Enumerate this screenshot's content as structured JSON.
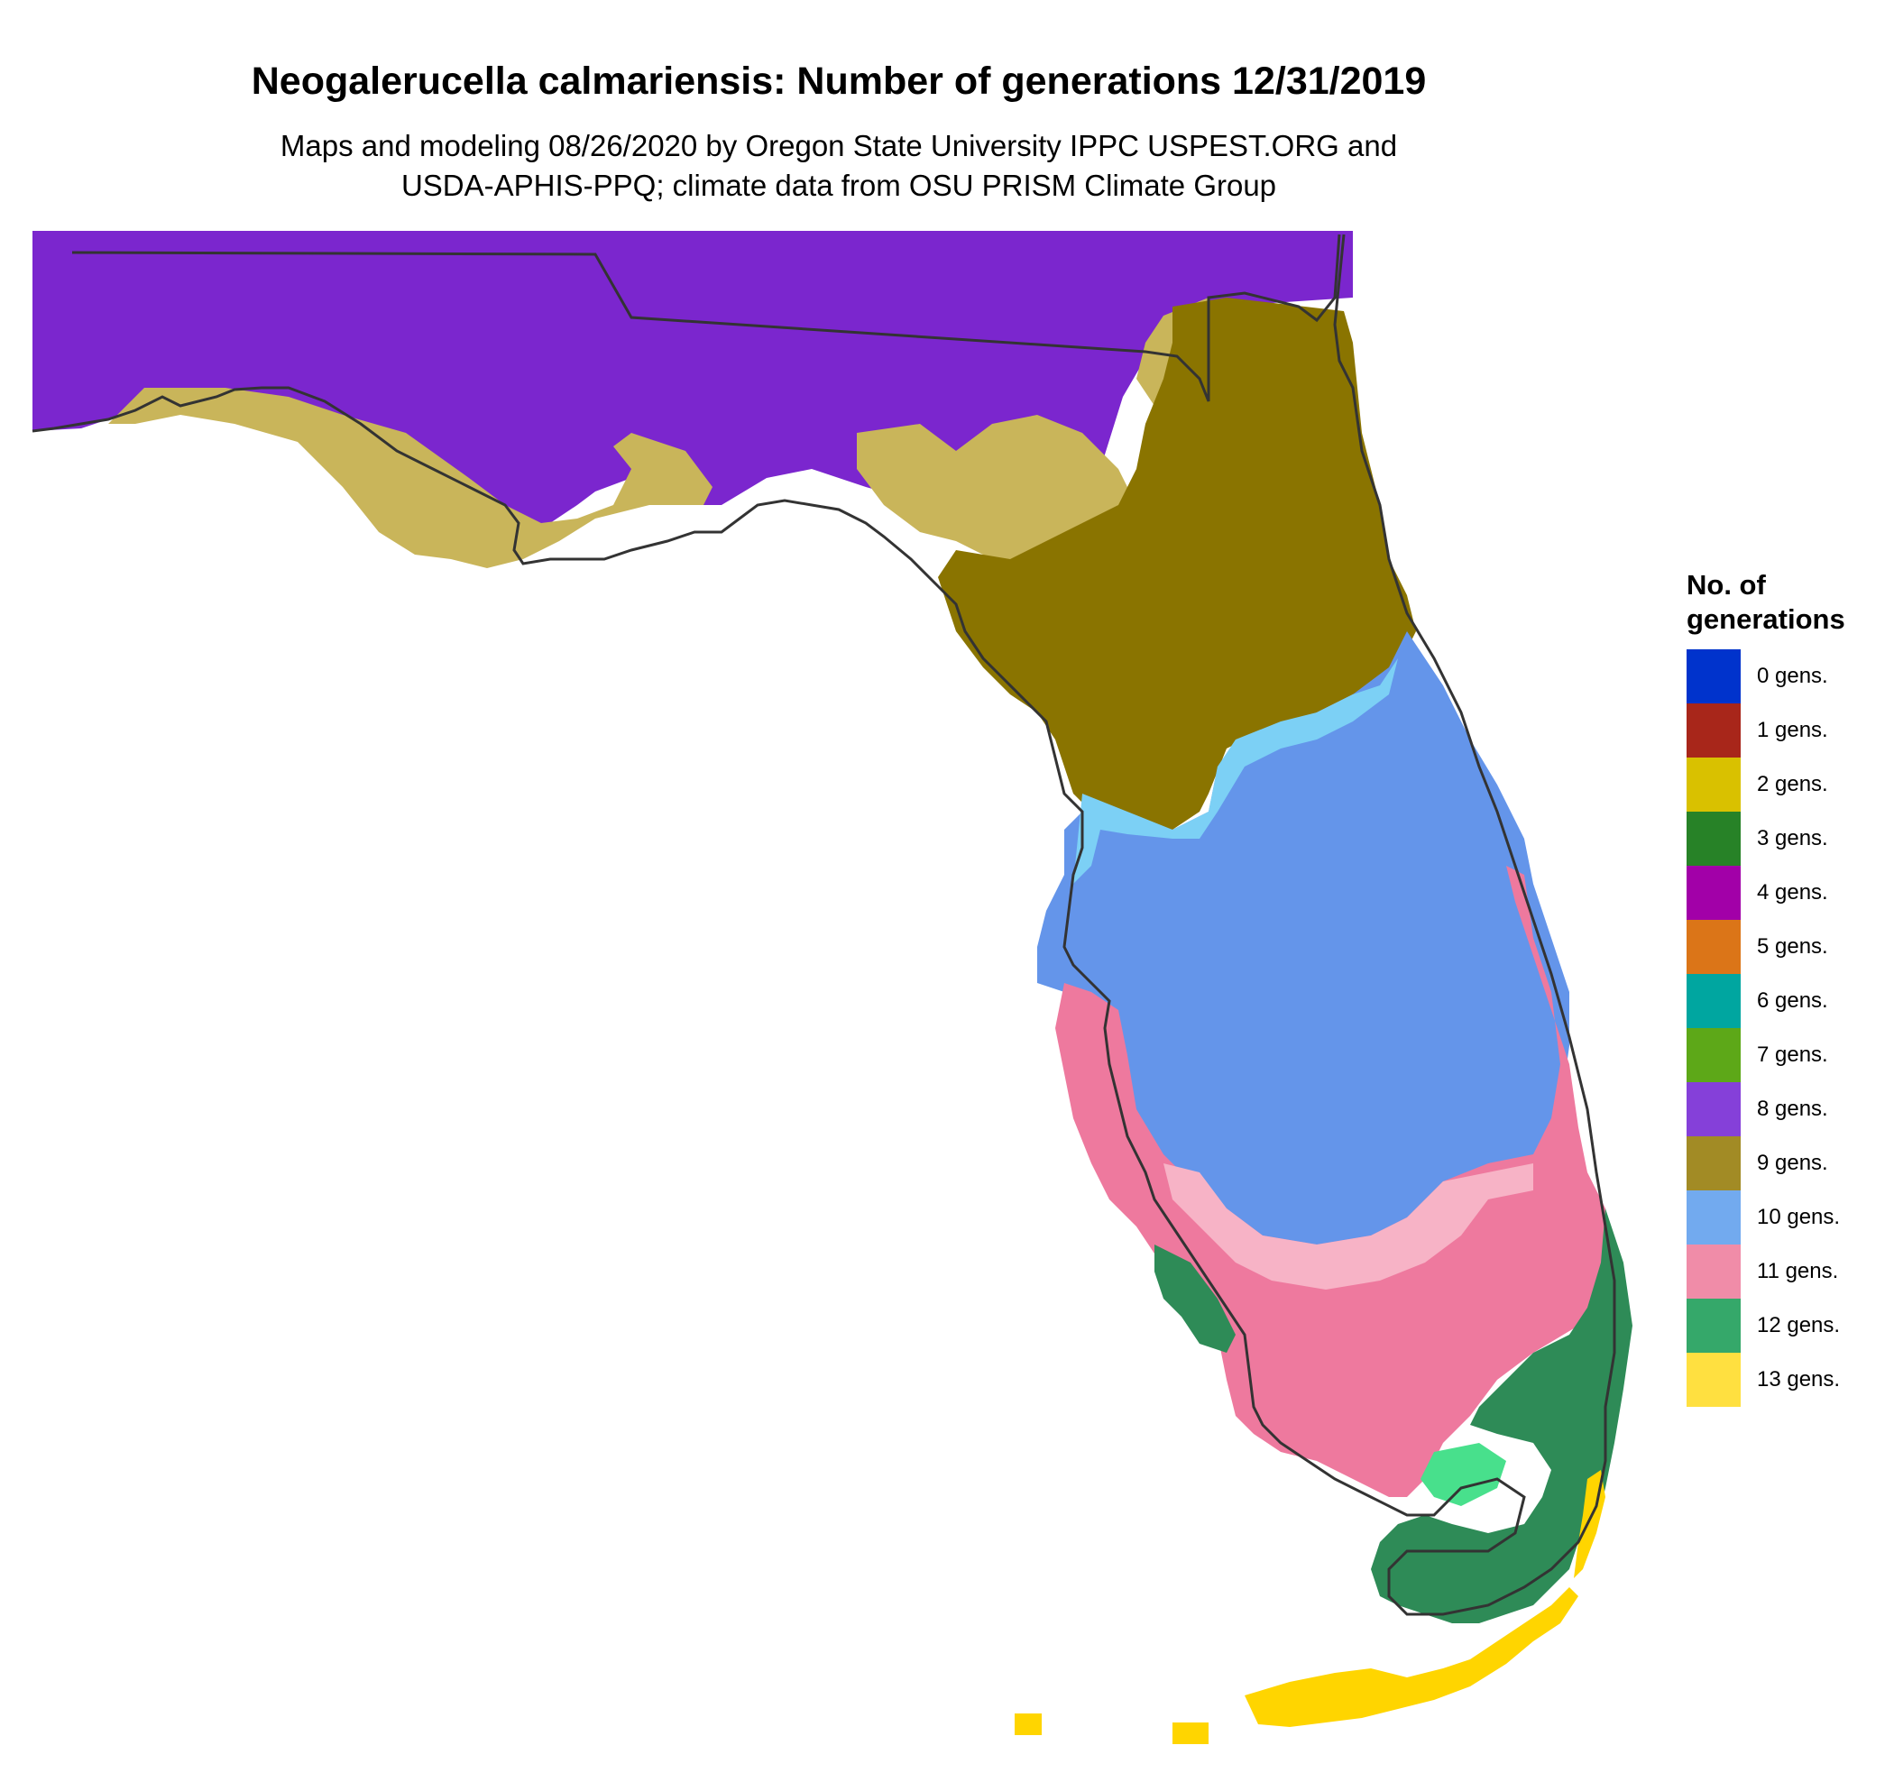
{
  "title": "Neogalerucella calmariensis: Number of generations 12/31/2019",
  "subtitle": [
    "Maps and modeling 08/26/2020 by Oregon State University IPPC USPEST.ORG and",
    "USDA-APHIS-PPQ; climate data from OSU PRISM Climate Group"
  ],
  "legend": {
    "title_lines": [
      "No. of",
      "generations"
    ],
    "items": [
      {
        "label": "0 gens.",
        "color": "#0033CC"
      },
      {
        "label": "1 gens.",
        "color": "#A8261A"
      },
      {
        "label": "2 gens.",
        "color": "#D9C100"
      },
      {
        "label": "3 gens.",
        "color": "#278227"
      },
      {
        "label": "4 gens.",
        "color": "#A200A8"
      },
      {
        "label": "5 gens.",
        "color": "#DB7518"
      },
      {
        "label": "6 gens.",
        "color": "#00A6A0"
      },
      {
        "label": "7 gens.",
        "color": "#5DA818"
      },
      {
        "label": "8 gens.",
        "color": "#8540D9"
      },
      {
        "label": "9 gens.",
        "color": "#A28B25"
      },
      {
        "label": "10 gens.",
        "color": "#72AAEF"
      },
      {
        "label": "11 gens.",
        "color": "#F08CA8"
      },
      {
        "label": "12 gens.",
        "color": "#35A86A"
      },
      {
        "label": "13 gens.",
        "color": "#FFE040"
      }
    ]
  },
  "map_colors": {
    "gen8": "#7B26CE",
    "gen9_dark": "#8A7400",
    "gen9_light": "#C9B55A",
    "gen9_mid": "#B09A30",
    "gen10": "#6495EA",
    "gen10_light": "#7CD0F5",
    "gen11": "#EE799E",
    "gen11_light": "#F7B3C6",
    "gen12": "#2E8B57",
    "gen12_light": "#48E08C",
    "gen13": "#FFD500",
    "outline": "#333333"
  }
}
